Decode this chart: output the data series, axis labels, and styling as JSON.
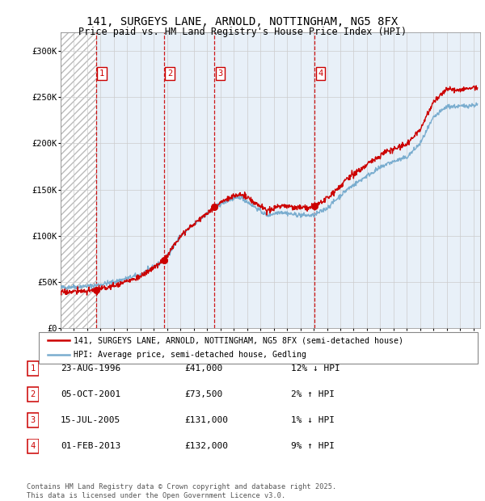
{
  "title": "141, SURGEYS LANE, ARNOLD, NOTTINGHAM, NG5 8FX",
  "subtitle": "Price paid vs. HM Land Registry's House Price Index (HPI)",
  "xlim_start": 1994.0,
  "xlim_end": 2025.5,
  "ylim": [
    0,
    320000
  ],
  "yticks": [
    0,
    50000,
    100000,
    150000,
    200000,
    250000,
    300000
  ],
  "ytick_labels": [
    "£0",
    "£50K",
    "£100K",
    "£150K",
    "£200K",
    "£250K",
    "£300K"
  ],
  "sale_dates": [
    1996.645,
    2001.756,
    2005.538,
    2013.085
  ],
  "sale_prices": [
    41000,
    73500,
    131000,
    132000
  ],
  "sale_labels": [
    "1",
    "2",
    "3",
    "4"
  ],
  "hpi_color": "#7aadcf",
  "price_color": "#cc0000",
  "legend_line1": "141, SURGEYS LANE, ARNOLD, NOTTINGHAM, NG5 8FX (semi-detached house)",
  "legend_line2": "HPI: Average price, semi-detached house, Gedling",
  "table_entries": [
    {
      "label": "1",
      "date": "23-AUG-1996",
      "price": "£41,000",
      "hpi": "12% ↓ HPI"
    },
    {
      "label": "2",
      "date": "05-OCT-2001",
      "price": "£73,500",
      "hpi": "2% ↑ HPI"
    },
    {
      "label": "3",
      "date": "15-JUL-2005",
      "price": "£131,000",
      "hpi": "1% ↓ HPI"
    },
    {
      "label": "4",
      "date": "01-FEB-2013",
      "price": "£132,000",
      "hpi": "9% ↑ HPI"
    }
  ],
  "footnote": "Contains HM Land Registry data © Crown copyright and database right 2025.\nThis data is licensed under the Open Government Licence v3.0.",
  "vline_color": "#cc0000",
  "grid_color": "#cccccc",
  "chart_bg": "#e8f0f8",
  "hatch_bg": "#ffffff"
}
